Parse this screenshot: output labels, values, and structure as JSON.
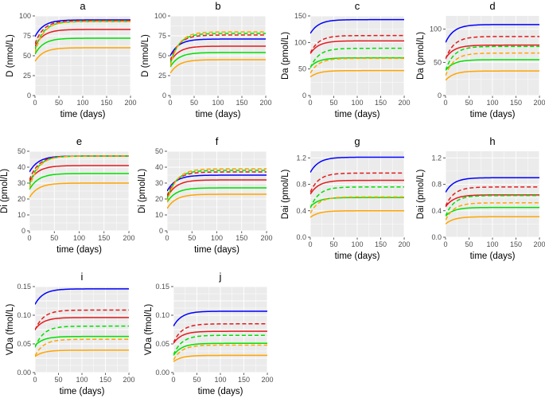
{
  "chart_data": [
    {
      "panel": "a",
      "type": "line",
      "xlabel": "time (days)",
      "ylabel": "D (nmol/L)",
      "xlim": [
        0,
        200
      ],
      "ylim": [
        0,
        100
      ],
      "xticks": [
        0,
        50,
        100,
        150,
        200
      ],
      "yticks": [
        0,
        25,
        50,
        75,
        100
      ],
      "series": [
        {
          "name": "blue-solid",
          "color": "#0000ff",
          "dash": false,
          "start": 74,
          "end": 95
        },
        {
          "name": "darkred-dashed",
          "color": "#e41a1c",
          "dash": true,
          "start": 65,
          "end": 94
        },
        {
          "name": "red-solid",
          "color": "#e41a1c",
          "dash": false,
          "start": 62,
          "end": 83
        },
        {
          "name": "green-dashed",
          "color": "#00e000",
          "dash": true,
          "start": 58,
          "end": 93
        },
        {
          "name": "green-solid",
          "color": "#00e000",
          "dash": false,
          "start": 52,
          "end": 72
        },
        {
          "name": "orange-dashed",
          "color": "#ffa500",
          "dash": true,
          "start": 54,
          "end": 93
        },
        {
          "name": "orange-solid",
          "color": "#ffa500",
          "dash": false,
          "start": 43,
          "end": 60
        }
      ]
    },
    {
      "panel": "b",
      "type": "line",
      "xlabel": "time (days)",
      "ylabel": "D (nmol/L)",
      "xlim": [
        0,
        200
      ],
      "ylim": [
        0,
        100
      ],
      "xticks": [
        0,
        50,
        100,
        150,
        200
      ],
      "yticks": [
        0,
        25,
        50,
        75,
        100
      ],
      "series": [
        {
          "name": "blue-solid",
          "color": "#0000ff",
          "dash": false,
          "start": 50,
          "end": 71
        },
        {
          "name": "darkred-dashed",
          "color": "#e41a1c",
          "dash": true,
          "start": 44,
          "end": 76
        },
        {
          "name": "red-solid",
          "color": "#e41a1c",
          "dash": false,
          "start": 42,
          "end": 62
        },
        {
          "name": "green-dashed",
          "color": "#00e000",
          "dash": true,
          "start": 40,
          "end": 78
        },
        {
          "name": "green-solid",
          "color": "#00e000",
          "dash": false,
          "start": 36,
          "end": 54
        },
        {
          "name": "orange-dashed",
          "color": "#ffa500",
          "dash": true,
          "start": 37,
          "end": 80
        },
        {
          "name": "orange-solid",
          "color": "#ffa500",
          "dash": false,
          "start": 28,
          "end": 45
        }
      ]
    },
    {
      "panel": "c",
      "type": "line",
      "xlabel": "time (days)",
      "ylabel": "Da (pmol/L)",
      "xlim": [
        0,
        200
      ],
      "ylim": [
        0,
        150
      ],
      "xticks": [
        0,
        50,
        100,
        150,
        200
      ],
      "yticks": [
        0,
        50,
        100,
        150
      ],
      "series": [
        {
          "name": "blue-solid",
          "color": "#0000ff",
          "dash": false,
          "start": 117,
          "end": 143
        },
        {
          "name": "darkred-dashed",
          "color": "#e41a1c",
          "dash": true,
          "start": 80,
          "end": 113
        },
        {
          "name": "red-solid",
          "color": "#e41a1c",
          "dash": false,
          "start": 79,
          "end": 103
        },
        {
          "name": "green-dashed",
          "color": "#00e000",
          "dash": true,
          "start": 52,
          "end": 89
        },
        {
          "name": "green-solid",
          "color": "#00e000",
          "dash": false,
          "start": 54,
          "end": 71
        },
        {
          "name": "orange-dashed",
          "color": "#ffa500",
          "dash": true,
          "start": 42,
          "end": 70
        },
        {
          "name": "orange-solid",
          "color": "#ffa500",
          "dash": false,
          "start": 35,
          "end": 47
        }
      ]
    },
    {
      "panel": "d",
      "type": "line",
      "xlabel": "time (days)",
      "ylabel": "Da (pmol/L)",
      "xlim": [
        0,
        200
      ],
      "ylim": [
        0,
        120
      ],
      "xticks": [
        0,
        50,
        100,
        150,
        200
      ],
      "yticks": [
        0,
        50,
        100
      ],
      "series": [
        {
          "name": "blue-solid",
          "color": "#0000ff",
          "dash": false,
          "start": 80,
          "end": 107
        },
        {
          "name": "darkred-dashed",
          "color": "#e41a1c",
          "dash": true,
          "start": 55,
          "end": 89
        },
        {
          "name": "red-solid",
          "color": "#e41a1c",
          "dash": false,
          "start": 56,
          "end": 76
        },
        {
          "name": "green-dashed",
          "color": "#00e000",
          "dash": true,
          "start": 38,
          "end": 74
        },
        {
          "name": "green-solid",
          "color": "#00e000",
          "dash": false,
          "start": 38,
          "end": 54
        },
        {
          "name": "orange-dashed",
          "color": "#ffa500",
          "dash": true,
          "start": 30,
          "end": 64
        },
        {
          "name": "orange-solid",
          "color": "#ffa500",
          "dash": false,
          "start": 23,
          "end": 37
        }
      ]
    },
    {
      "panel": "e",
      "type": "line",
      "xlabel": "time (days)",
      "ylabel": "Di (pmol/L)",
      "xlim": [
        0,
        200
      ],
      "ylim": [
        0,
        50
      ],
      "xticks": [
        0,
        50,
        100,
        150,
        200
      ],
      "yticks": [
        0,
        10,
        20,
        30,
        40,
        50
      ],
      "series": [
        {
          "name": "blue-solid",
          "color": "#0000ff",
          "dash": false,
          "start": 37,
          "end": 47
        },
        {
          "name": "darkred-dashed",
          "color": "#e41a1c",
          "dash": true,
          "start": 32,
          "end": 47
        },
        {
          "name": "red-solid",
          "color": "#e41a1c",
          "dash": false,
          "start": 31,
          "end": 41
        },
        {
          "name": "green-dashed",
          "color": "#00e000",
          "dash": true,
          "start": 29,
          "end": 47
        },
        {
          "name": "green-solid",
          "color": "#00e000",
          "dash": false,
          "start": 26,
          "end": 36
        },
        {
          "name": "orange-dashed",
          "color": "#ffa500",
          "dash": true,
          "start": 27,
          "end": 47
        },
        {
          "name": "orange-solid",
          "color": "#ffa500",
          "dash": false,
          "start": 21,
          "end": 30
        }
      ]
    },
    {
      "panel": "f",
      "type": "line",
      "xlabel": "time (days)",
      "ylabel": "Di (pmol/L)",
      "xlim": [
        0,
        200
      ],
      "ylim": [
        0,
        50
      ],
      "xticks": [
        0,
        50,
        100,
        150,
        200
      ],
      "yticks": [
        0,
        10,
        20,
        30,
        40,
        50
      ],
      "series": [
        {
          "name": "blue-solid",
          "color": "#0000ff",
          "dash": false,
          "start": 25,
          "end": 35
        },
        {
          "name": "darkred-dashed",
          "color": "#e41a1c",
          "dash": true,
          "start": 22,
          "end": 37
        },
        {
          "name": "red-solid",
          "color": "#e41a1c",
          "dash": false,
          "start": 21,
          "end": 32
        },
        {
          "name": "green-dashed",
          "color": "#00e000",
          "dash": true,
          "start": 20,
          "end": 38
        },
        {
          "name": "green-solid",
          "color": "#00e000",
          "dash": false,
          "start": 18,
          "end": 27
        },
        {
          "name": "orange-dashed",
          "color": "#ffa500",
          "dash": true,
          "start": 18,
          "end": 39
        },
        {
          "name": "orange-solid",
          "color": "#ffa500",
          "dash": false,
          "start": 14,
          "end": 23
        }
      ]
    },
    {
      "panel": "g",
      "type": "line",
      "xlabel": "time (days)",
      "ylabel": "Dai (pmol/L)",
      "xlim": [
        0,
        200
      ],
      "ylim": [
        0,
        1.3
      ],
      "xticks": [
        0,
        50,
        100,
        150,
        200
      ],
      "yticks": [
        0.0,
        0.4,
        0.8,
        1.2
      ],
      "series": [
        {
          "name": "blue-solid",
          "color": "#0000ff",
          "dash": false,
          "start": 0.98,
          "end": 1.21
        },
        {
          "name": "darkred-dashed",
          "color": "#e41a1c",
          "dash": true,
          "start": 0.68,
          "end": 0.97
        },
        {
          "name": "red-solid",
          "color": "#e41a1c",
          "dash": false,
          "start": 0.65,
          "end": 0.86
        },
        {
          "name": "green-dashed",
          "color": "#00e000",
          "dash": true,
          "start": 0.44,
          "end": 0.76
        },
        {
          "name": "green-solid",
          "color": "#00e000",
          "dash": false,
          "start": 0.46,
          "end": 0.6
        },
        {
          "name": "orange-dashed",
          "color": "#ffa500",
          "dash": true,
          "start": 0.36,
          "end": 0.61
        },
        {
          "name": "orange-solid",
          "color": "#ffa500",
          "dash": false,
          "start": 0.3,
          "end": 0.4
        }
      ]
    },
    {
      "panel": "h",
      "type": "line",
      "xlabel": "time (days)",
      "ylabel": "Dai (pmol/L)",
      "xlim": [
        0,
        200
      ],
      "ylim": [
        0,
        1.3
      ],
      "xticks": [
        0,
        50,
        100,
        150,
        200
      ],
      "yticks": [
        0.0,
        0.4,
        0.8,
        1.2
      ],
      "series": [
        {
          "name": "blue-solid",
          "color": "#0000ff",
          "dash": false,
          "start": 0.68,
          "end": 0.9
        },
        {
          "name": "darkred-dashed",
          "color": "#e41a1c",
          "dash": true,
          "start": 0.47,
          "end": 0.76
        },
        {
          "name": "red-solid",
          "color": "#e41a1c",
          "dash": false,
          "start": 0.46,
          "end": 0.64
        },
        {
          "name": "green-dashed",
          "color": "#00e000",
          "dash": true,
          "start": 0.32,
          "end": 0.63
        },
        {
          "name": "green-solid",
          "color": "#00e000",
          "dash": false,
          "start": 0.32,
          "end": 0.45
        },
        {
          "name": "orange-dashed",
          "color": "#ffa500",
          "dash": true,
          "start": 0.26,
          "end": 0.52
        },
        {
          "name": "orange-solid",
          "color": "#ffa500",
          "dash": false,
          "start": 0.2,
          "end": 0.31
        }
      ]
    },
    {
      "panel": "i",
      "type": "line",
      "xlabel": "time (days)",
      "ylabel": "VDa (fmol/L)",
      "xlim": [
        0,
        200
      ],
      "ylim": [
        0,
        0.15
      ],
      "xticks": [
        0,
        50,
        100,
        150,
        200
      ],
      "yticks": [
        0.0,
        0.025,
        0.05,
        0.075,
        0.1,
        0.125,
        0.15
      ],
      "yticklabels": [
        "0.00",
        "",
        "0.05",
        "",
        "0.10",
        "",
        "0.15"
      ],
      "series": [
        {
          "name": "blue-solid",
          "color": "#0000ff",
          "dash": false,
          "start": 0.119,
          "end": 0.146
        },
        {
          "name": "darkred-dashed",
          "color": "#e41a1c",
          "dash": true,
          "start": 0.074,
          "end": 0.109
        },
        {
          "name": "red-solid",
          "color": "#e41a1c",
          "dash": false,
          "start": 0.075,
          "end": 0.096
        },
        {
          "name": "green-dashed",
          "color": "#00e000",
          "dash": true,
          "start": 0.044,
          "end": 0.081
        },
        {
          "name": "green-solid",
          "color": "#00e000",
          "dash": false,
          "start": 0.047,
          "end": 0.063
        },
        {
          "name": "orange-dashed",
          "color": "#ffa500",
          "dash": true,
          "start": 0.029,
          "end": 0.058
        },
        {
          "name": "orange-solid",
          "color": "#ffa500",
          "dash": false,
          "start": 0.028,
          "end": 0.039
        }
      ]
    },
    {
      "panel": "j",
      "type": "line",
      "xlabel": "time (days)",
      "ylabel": "VDa (fmol/L)",
      "xlim": [
        0,
        200
      ],
      "ylim": [
        0,
        0.15
      ],
      "xticks": [
        0,
        50,
        100,
        150,
        200
      ],
      "yticks": [
        0.0,
        0.025,
        0.05,
        0.075,
        0.1,
        0.125,
        0.15
      ],
      "yticklabels": [
        "0.00",
        "",
        "0.05",
        "",
        "0.10",
        "",
        "0.15"
      ],
      "series": [
        {
          "name": "blue-solid",
          "color": "#0000ff",
          "dash": false,
          "start": 0.081,
          "end": 0.107
        },
        {
          "name": "darkred-dashed",
          "color": "#e41a1c",
          "dash": true,
          "start": 0.052,
          "end": 0.085
        },
        {
          "name": "red-solid",
          "color": "#e41a1c",
          "dash": false,
          "start": 0.051,
          "end": 0.072
        },
        {
          "name": "green-dashed",
          "color": "#00e000",
          "dash": true,
          "start": 0.031,
          "end": 0.065
        },
        {
          "name": "green-solid",
          "color": "#00e000",
          "dash": false,
          "start": 0.03,
          "end": 0.051
        },
        {
          "name": "orange-dashed",
          "color": "#ffa500",
          "dash": true,
          "start": 0.022,
          "end": 0.048
        },
        {
          "name": "orange-solid",
          "color": "#ffa500",
          "dash": false,
          "start": 0.019,
          "end": 0.03
        }
      ]
    }
  ]
}
